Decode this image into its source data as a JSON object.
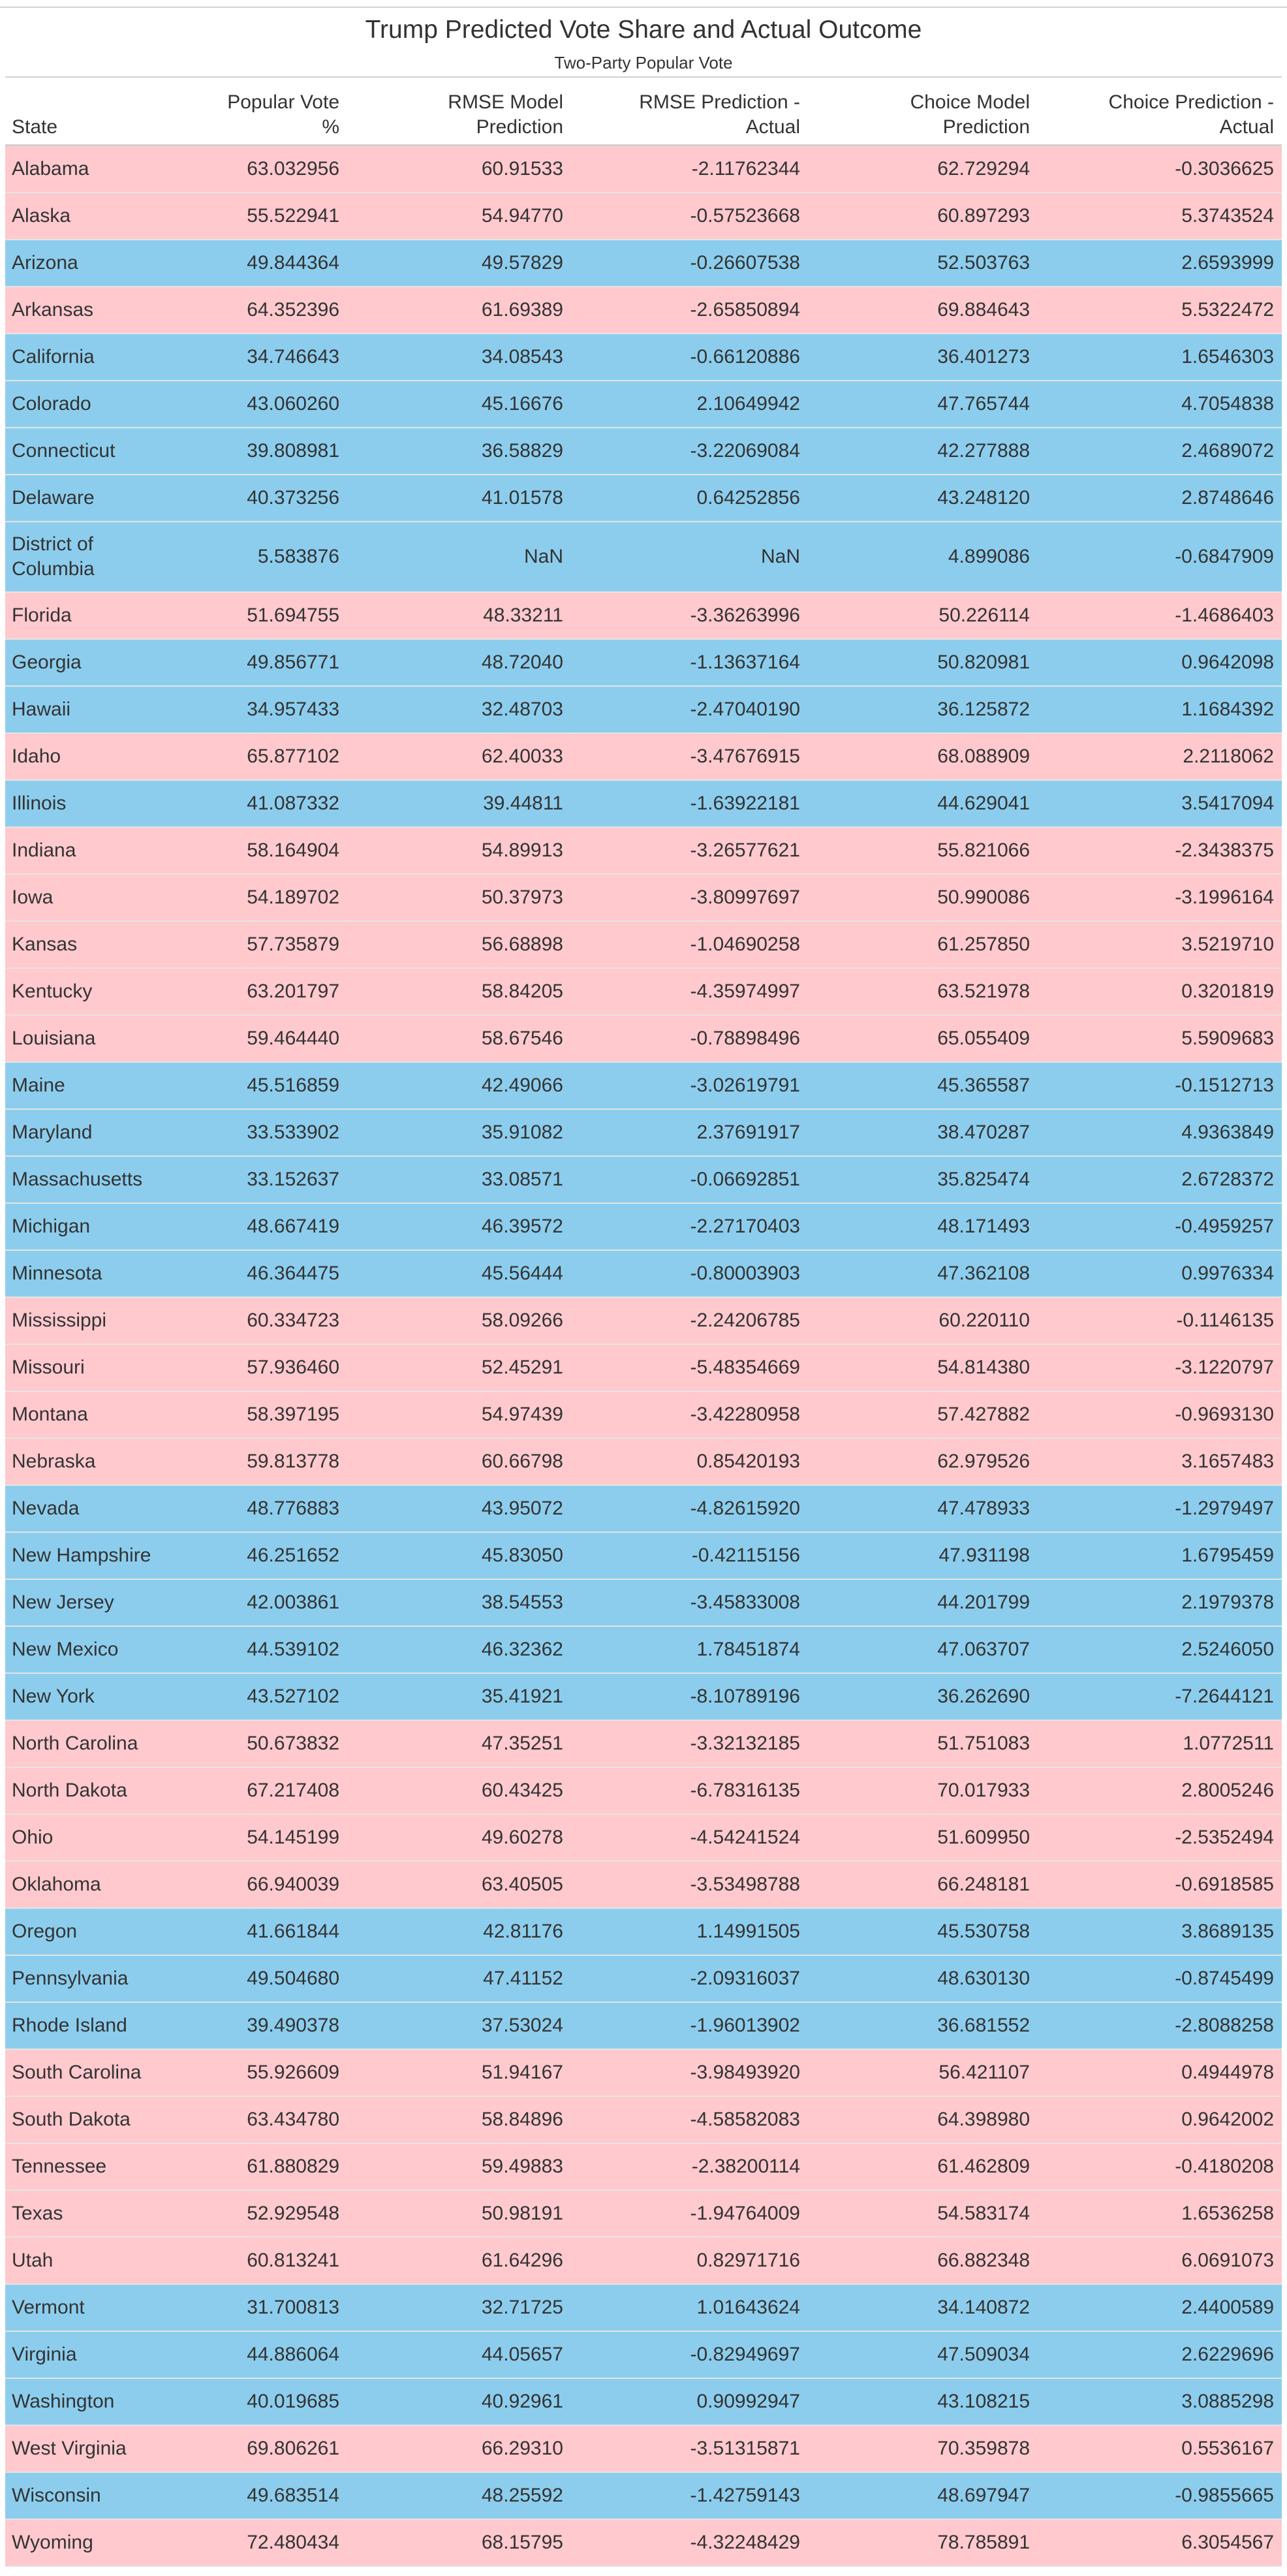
{
  "title": "Trump Predicted Vote Share and Actual Outcome",
  "subtitle": "Two-Party Popular Vote",
  "colors": {
    "gop": "#ffc9ce",
    "dem": "#8ccded",
    "rule": "#d0d0d0"
  },
  "columns": [
    {
      "key": "state",
      "label": "State"
    },
    {
      "key": "popular_vote",
      "label": "Popular Vote %"
    },
    {
      "key": "rmse_pred",
      "label": "RMSE Model Prediction"
    },
    {
      "key": "rmse_diff",
      "label": "RMSE Prediction - Actual"
    },
    {
      "key": "choice_pred",
      "label": "Choice Model Prediction"
    },
    {
      "key": "choice_diff",
      "label": "Choice Prediction - Actual"
    }
  ],
  "rows": [
    {
      "state": "Alabama",
      "color": "red",
      "popular_vote": "63.032956",
      "rmse_pred": "60.91533",
      "rmse_diff": "-2.11762344",
      "choice_pred": "62.729294",
      "choice_diff": "-0.3036625"
    },
    {
      "state": "Alaska",
      "color": "red",
      "popular_vote": "55.522941",
      "rmse_pred": "54.94770",
      "rmse_diff": "-0.57523668",
      "choice_pred": "60.897293",
      "choice_diff": "5.3743524"
    },
    {
      "state": "Arizona",
      "color": "blue",
      "popular_vote": "49.844364",
      "rmse_pred": "49.57829",
      "rmse_diff": "-0.26607538",
      "choice_pred": "52.503763",
      "choice_diff": "2.6593999"
    },
    {
      "state": "Arkansas",
      "color": "red",
      "popular_vote": "64.352396",
      "rmse_pred": "61.69389",
      "rmse_diff": "-2.65850894",
      "choice_pred": "69.884643",
      "choice_diff": "5.5322472"
    },
    {
      "state": "California",
      "color": "blue",
      "popular_vote": "34.746643",
      "rmse_pred": "34.08543",
      "rmse_diff": "-0.66120886",
      "choice_pred": "36.401273",
      "choice_diff": "1.6546303"
    },
    {
      "state": "Colorado",
      "color": "blue",
      "popular_vote": "43.060260",
      "rmse_pred": "45.16676",
      "rmse_diff": "2.10649942",
      "choice_pred": "47.765744",
      "choice_diff": "4.7054838"
    },
    {
      "state": "Connecticut",
      "color": "blue",
      "popular_vote": "39.808981",
      "rmse_pred": "36.58829",
      "rmse_diff": "-3.22069084",
      "choice_pred": "42.277888",
      "choice_diff": "2.4689072"
    },
    {
      "state": "Delaware",
      "color": "blue",
      "popular_vote": "40.373256",
      "rmse_pred": "41.01578",
      "rmse_diff": "0.64252856",
      "choice_pred": "43.248120",
      "choice_diff": "2.8748646"
    },
    {
      "state": "District of Columbia",
      "color": "blue",
      "popular_vote": "5.583876",
      "rmse_pred": "NaN",
      "rmse_diff": "NaN",
      "choice_pred": "4.899086",
      "choice_diff": "-0.6847909"
    },
    {
      "state": "Florida",
      "color": "red",
      "popular_vote": "51.694755",
      "rmse_pred": "48.33211",
      "rmse_diff": "-3.36263996",
      "choice_pred": "50.226114",
      "choice_diff": "-1.4686403"
    },
    {
      "state": "Georgia",
      "color": "blue",
      "popular_vote": "49.856771",
      "rmse_pred": "48.72040",
      "rmse_diff": "-1.13637164",
      "choice_pred": "50.820981",
      "choice_diff": "0.9642098"
    },
    {
      "state": "Hawaii",
      "color": "blue",
      "popular_vote": "34.957433",
      "rmse_pred": "32.48703",
      "rmse_diff": "-2.47040190",
      "choice_pred": "36.125872",
      "choice_diff": "1.1684392"
    },
    {
      "state": "Idaho",
      "color": "red",
      "popular_vote": "65.877102",
      "rmse_pred": "62.40033",
      "rmse_diff": "-3.47676915",
      "choice_pred": "68.088909",
      "choice_diff": "2.2118062"
    },
    {
      "state": "Illinois",
      "color": "blue",
      "popular_vote": "41.087332",
      "rmse_pred": "39.44811",
      "rmse_diff": "-1.63922181",
      "choice_pred": "44.629041",
      "choice_diff": "3.5417094"
    },
    {
      "state": "Indiana",
      "color": "red",
      "popular_vote": "58.164904",
      "rmse_pred": "54.89913",
      "rmse_diff": "-3.26577621",
      "choice_pred": "55.821066",
      "choice_diff": "-2.3438375"
    },
    {
      "state": "Iowa",
      "color": "red",
      "popular_vote": "54.189702",
      "rmse_pred": "50.37973",
      "rmse_diff": "-3.80997697",
      "choice_pred": "50.990086",
      "choice_diff": "-3.1996164"
    },
    {
      "state": "Kansas",
      "color": "red",
      "popular_vote": "57.735879",
      "rmse_pred": "56.68898",
      "rmse_diff": "-1.04690258",
      "choice_pred": "61.257850",
      "choice_diff": "3.5219710"
    },
    {
      "state": "Kentucky",
      "color": "red",
      "popular_vote": "63.201797",
      "rmse_pred": "58.84205",
      "rmse_diff": "-4.35974997",
      "choice_pred": "63.521978",
      "choice_diff": "0.3201819"
    },
    {
      "state": "Louisiana",
      "color": "red",
      "popular_vote": "59.464440",
      "rmse_pred": "58.67546",
      "rmse_diff": "-0.78898496",
      "choice_pred": "65.055409",
      "choice_diff": "5.5909683"
    },
    {
      "state": "Maine",
      "color": "blue",
      "popular_vote": "45.516859",
      "rmse_pred": "42.49066",
      "rmse_diff": "-3.02619791",
      "choice_pred": "45.365587",
      "choice_diff": "-0.1512713"
    },
    {
      "state": "Maryland",
      "color": "blue",
      "popular_vote": "33.533902",
      "rmse_pred": "35.91082",
      "rmse_diff": "2.37691917",
      "choice_pred": "38.470287",
      "choice_diff": "4.9363849"
    },
    {
      "state": "Massachusetts",
      "color": "blue",
      "popular_vote": "33.152637",
      "rmse_pred": "33.08571",
      "rmse_diff": "-0.06692851",
      "choice_pred": "35.825474",
      "choice_diff": "2.6728372"
    },
    {
      "state": "Michigan",
      "color": "blue",
      "popular_vote": "48.667419",
      "rmse_pred": "46.39572",
      "rmse_diff": "-2.27170403",
      "choice_pred": "48.171493",
      "choice_diff": "-0.4959257"
    },
    {
      "state": "Minnesota",
      "color": "blue",
      "popular_vote": "46.364475",
      "rmse_pred": "45.56444",
      "rmse_diff": "-0.80003903",
      "choice_pred": "47.362108",
      "choice_diff": "0.9976334"
    },
    {
      "state": "Mississippi",
      "color": "red",
      "popular_vote": "60.334723",
      "rmse_pred": "58.09266",
      "rmse_diff": "-2.24206785",
      "choice_pred": "60.220110",
      "choice_diff": "-0.1146135"
    },
    {
      "state": "Missouri",
      "color": "red",
      "popular_vote": "57.936460",
      "rmse_pred": "52.45291",
      "rmse_diff": "-5.48354669",
      "choice_pred": "54.814380",
      "choice_diff": "-3.1220797"
    },
    {
      "state": "Montana",
      "color": "red",
      "popular_vote": "58.397195",
      "rmse_pred": "54.97439",
      "rmse_diff": "-3.42280958",
      "choice_pred": "57.427882",
      "choice_diff": "-0.9693130"
    },
    {
      "state": "Nebraska",
      "color": "red",
      "popular_vote": "59.813778",
      "rmse_pred": "60.66798",
      "rmse_diff": "0.85420193",
      "choice_pred": "62.979526",
      "choice_diff": "3.1657483"
    },
    {
      "state": "Nevada",
      "color": "blue",
      "popular_vote": "48.776883",
      "rmse_pred": "43.95072",
      "rmse_diff": "-4.82615920",
      "choice_pred": "47.478933",
      "choice_diff": "-1.2979497"
    },
    {
      "state": "New Hampshire",
      "color": "blue",
      "popular_vote": "46.251652",
      "rmse_pred": "45.83050",
      "rmse_diff": "-0.42115156",
      "choice_pred": "47.931198",
      "choice_diff": "1.6795459"
    },
    {
      "state": "New Jersey",
      "color": "blue",
      "popular_vote": "42.003861",
      "rmse_pred": "38.54553",
      "rmse_diff": "-3.45833008",
      "choice_pred": "44.201799",
      "choice_diff": "2.1979378"
    },
    {
      "state": "New Mexico",
      "color": "blue",
      "popular_vote": "44.539102",
      "rmse_pred": "46.32362",
      "rmse_diff": "1.78451874",
      "choice_pred": "47.063707",
      "choice_diff": "2.5246050"
    },
    {
      "state": "New York",
      "color": "blue",
      "popular_vote": "43.527102",
      "rmse_pred": "35.41921",
      "rmse_diff": "-8.10789196",
      "choice_pred": "36.262690",
      "choice_diff": "-7.2644121"
    },
    {
      "state": "North Carolina",
      "color": "red",
      "popular_vote": "50.673832",
      "rmse_pred": "47.35251",
      "rmse_diff": "-3.32132185",
      "choice_pred": "51.751083",
      "choice_diff": "1.0772511"
    },
    {
      "state": "North Dakota",
      "color": "red",
      "popular_vote": "67.217408",
      "rmse_pred": "60.43425",
      "rmse_diff": "-6.78316135",
      "choice_pred": "70.017933",
      "choice_diff": "2.8005246"
    },
    {
      "state": "Ohio",
      "color": "red",
      "popular_vote": "54.145199",
      "rmse_pred": "49.60278",
      "rmse_diff": "-4.54241524",
      "choice_pred": "51.609950",
      "choice_diff": "-2.5352494"
    },
    {
      "state": "Oklahoma",
      "color": "red",
      "popular_vote": "66.940039",
      "rmse_pred": "63.40505",
      "rmse_diff": "-3.53498788",
      "choice_pred": "66.248181",
      "choice_diff": "-0.6918585"
    },
    {
      "state": "Oregon",
      "color": "blue",
      "popular_vote": "41.661844",
      "rmse_pred": "42.81176",
      "rmse_diff": "1.14991505",
      "choice_pred": "45.530758",
      "choice_diff": "3.8689135"
    },
    {
      "state": "Pennsylvania",
      "color": "blue",
      "popular_vote": "49.504680",
      "rmse_pred": "47.41152",
      "rmse_diff": "-2.09316037",
      "choice_pred": "48.630130",
      "choice_diff": "-0.8745499"
    },
    {
      "state": "Rhode Island",
      "color": "blue",
      "popular_vote": "39.490378",
      "rmse_pred": "37.53024",
      "rmse_diff": "-1.96013902",
      "choice_pred": "36.681552",
      "choice_diff": "-2.8088258"
    },
    {
      "state": "South Carolina",
      "color": "red",
      "popular_vote": "55.926609",
      "rmse_pred": "51.94167",
      "rmse_diff": "-3.98493920",
      "choice_pred": "56.421107",
      "choice_diff": "0.4944978"
    },
    {
      "state": "South Dakota",
      "color": "red",
      "popular_vote": "63.434780",
      "rmse_pred": "58.84896",
      "rmse_diff": "-4.58582083",
      "choice_pred": "64.398980",
      "choice_diff": "0.9642002"
    },
    {
      "state": "Tennessee",
      "color": "red",
      "popular_vote": "61.880829",
      "rmse_pred": "59.49883",
      "rmse_diff": "-2.38200114",
      "choice_pred": "61.462809",
      "choice_diff": "-0.4180208"
    },
    {
      "state": "Texas",
      "color": "red",
      "popular_vote": "52.929548",
      "rmse_pred": "50.98191",
      "rmse_diff": "-1.94764009",
      "choice_pred": "54.583174",
      "choice_diff": "1.6536258"
    },
    {
      "state": "Utah",
      "color": "red",
      "popular_vote": "60.813241",
      "rmse_pred": "61.64296",
      "rmse_diff": "0.82971716",
      "choice_pred": "66.882348",
      "choice_diff": "6.0691073"
    },
    {
      "state": "Vermont",
      "color": "blue",
      "popular_vote": "31.700813",
      "rmse_pred": "32.71725",
      "rmse_diff": "1.01643624",
      "choice_pred": "34.140872",
      "choice_diff": "2.4400589"
    },
    {
      "state": "Virginia",
      "color": "blue",
      "popular_vote": "44.886064",
      "rmse_pred": "44.05657",
      "rmse_diff": "-0.82949697",
      "choice_pred": "47.509034",
      "choice_diff": "2.6229696"
    },
    {
      "state": "Washington",
      "color": "blue",
      "popular_vote": "40.019685",
      "rmse_pred": "40.92961",
      "rmse_diff": "0.90992947",
      "choice_pred": "43.108215",
      "choice_diff": "3.0885298"
    },
    {
      "state": "West Virginia",
      "color": "red",
      "popular_vote": "69.806261",
      "rmse_pred": "66.29310",
      "rmse_diff": "-3.51315871",
      "choice_pred": "70.359878",
      "choice_diff": "0.5536167"
    },
    {
      "state": "Wisconsin",
      "color": "blue",
      "popular_vote": "49.683514",
      "rmse_pred": "48.25592",
      "rmse_diff": "-1.42759143",
      "choice_pred": "48.697947",
      "choice_diff": "-0.9855665"
    },
    {
      "state": "Wyoming",
      "color": "red",
      "popular_vote": "72.480434",
      "rmse_pred": "68.15795",
      "rmse_diff": "-4.32248429",
      "choice_pred": "78.785891",
      "choice_diff": "6.3054567"
    }
  ]
}
